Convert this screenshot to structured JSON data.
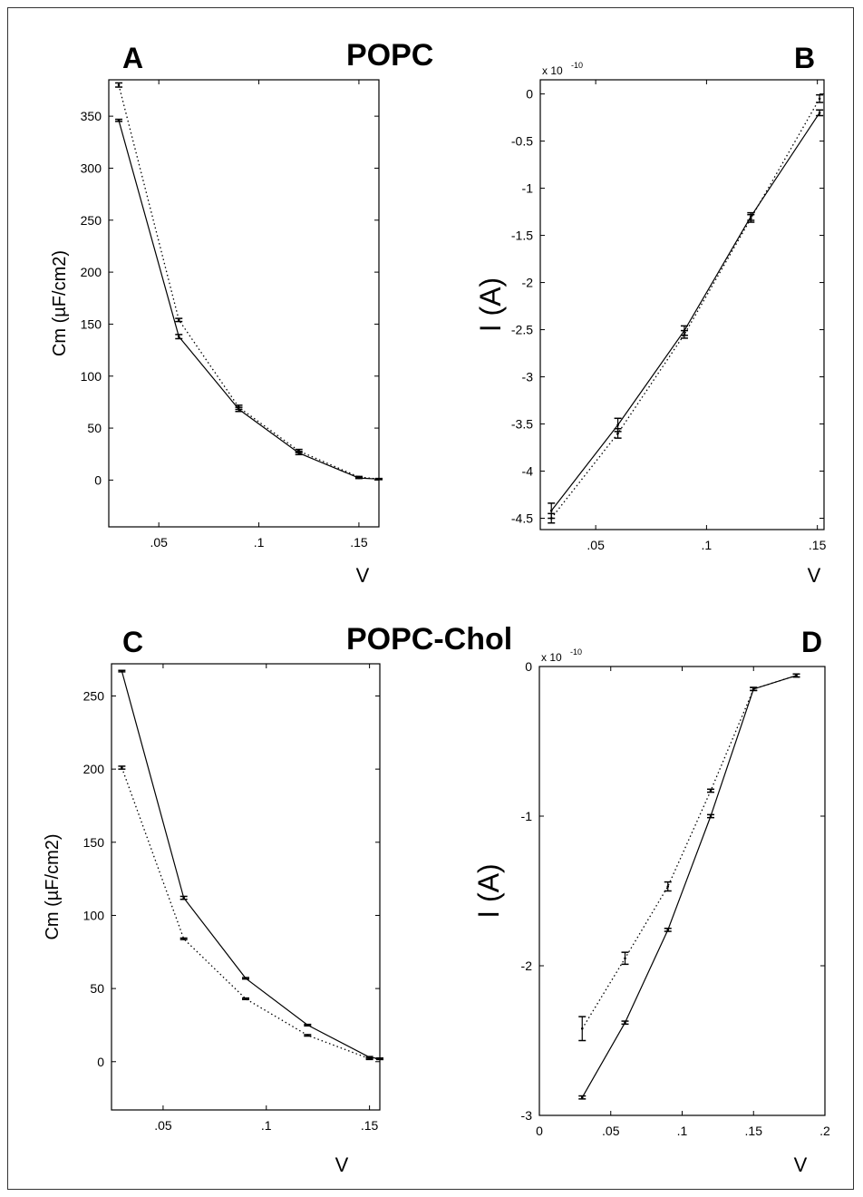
{
  "group_titles": [
    "POPC",
    "POPC-Chol"
  ],
  "chart_data": [
    {
      "panel": "A",
      "type": "line",
      "xlabel": "V",
      "ylabel": "Cm (µF/cm2)",
      "xlim": [
        0.025,
        0.16
      ],
      "ylim": [
        -45,
        385
      ],
      "xticks": [
        0.05,
        0.1,
        0.15
      ],
      "yticks": [
        0,
        50,
        100,
        150,
        200,
        250,
        300,
        350
      ],
      "exponent": "",
      "x": [
        0.03,
        0.06,
        0.09,
        0.12,
        0.15,
        0.16
      ],
      "series": [
        {
          "style": "solid",
          "values": [
            346,
            138,
            68,
            26,
            2,
            1
          ],
          "err": [
            1,
            2,
            2,
            1.5,
            0.5,
            0.5
          ]
        },
        {
          "style": "dotted",
          "values": [
            380,
            154,
            70,
            28,
            3,
            1
          ],
          "err": [
            2,
            1.5,
            2,
            1.5,
            0.5,
            0.5
          ]
        }
      ]
    },
    {
      "panel": "B",
      "type": "line",
      "xlabel": "V",
      "ylabel": "I (A)",
      "xlim": [
        0.025,
        0.153
      ],
      "ylim": [
        -4.62,
        0.15
      ],
      "xticks": [
        0.05,
        0.1,
        0.15
      ],
      "yticks": [
        0,
        -0.5,
        -1,
        -1.5,
        -2,
        -2.5,
        -3,
        -3.5,
        -4,
        -4.5
      ],
      "exponent": "x 10",
      "exponent_power": "-10",
      "x": [
        0.03,
        0.06,
        0.09,
        0.12,
        0.151
      ],
      "series": [
        {
          "style": "solid",
          "values": [
            -4.42,
            -3.51,
            -2.51,
            -1.3,
            -0.2
          ],
          "err": [
            0.08,
            0.07,
            0.05,
            0.04,
            0.03
          ]
        },
        {
          "style": "dotted",
          "values": [
            -4.5,
            -3.6,
            -2.55,
            -1.32,
            -0.05
          ],
          "err": [
            0.05,
            0.05,
            0.04,
            0.04,
            0.04
          ]
        }
      ]
    },
    {
      "panel": "C",
      "type": "line",
      "xlabel": "V",
      "ylabel": "Cm (µF/cm2)",
      "xlim": [
        0.025,
        0.155
      ],
      "ylim": [
        -33,
        272
      ],
      "xticks": [
        0.05,
        0.1,
        0.15
      ],
      "yticks": [
        0,
        50,
        100,
        150,
        200,
        250
      ],
      "exponent": "",
      "x": [
        0.03,
        0.06,
        0.09,
        0.12,
        0.15,
        0.155
      ],
      "series": [
        {
          "style": "solid",
          "values": [
            267,
            112,
            57,
            25,
            3,
            2
          ],
          "err": [
            0.5,
            1,
            0.5,
            0.5,
            0.5,
            0.5
          ]
        },
        {
          "style": "dotted",
          "values": [
            201,
            84,
            43,
            18,
            2,
            2
          ],
          "err": [
            1,
            0.5,
            0.5,
            0.5,
            0.5,
            0.5
          ]
        }
      ]
    },
    {
      "panel": "D",
      "type": "line",
      "xlabel": "V",
      "ylabel": "I (A)",
      "xlim": [
        0,
        0.2
      ],
      "ylim": [
        -3,
        0
      ],
      "xticks": [
        0,
        0.05,
        0.1,
        0.15,
        0.2
      ],
      "yticks": [
        0,
        -1,
        -2,
        -3
      ],
      "exponent": "x 10",
      "exponent_power": "-10",
      "x": [
        0.03,
        0.06,
        0.09,
        0.12,
        0.15,
        0.18
      ],
      "series": [
        {
          "style": "solid",
          "values": [
            -2.88,
            -2.38,
            -1.76,
            -1.0,
            -0.15,
            -0.06
          ],
          "err": [
            0.01,
            0.01,
            0.01,
            0.01,
            0.01,
            0.01
          ]
        },
        {
          "style": "dotted",
          "values": [
            -2.42,
            -1.95,
            -1.47,
            -0.83,
            -0.15,
            -0.06
          ],
          "err": [
            0.08,
            0.04,
            0.03,
            0.01,
            0.01,
            0.01
          ]
        }
      ]
    }
  ]
}
